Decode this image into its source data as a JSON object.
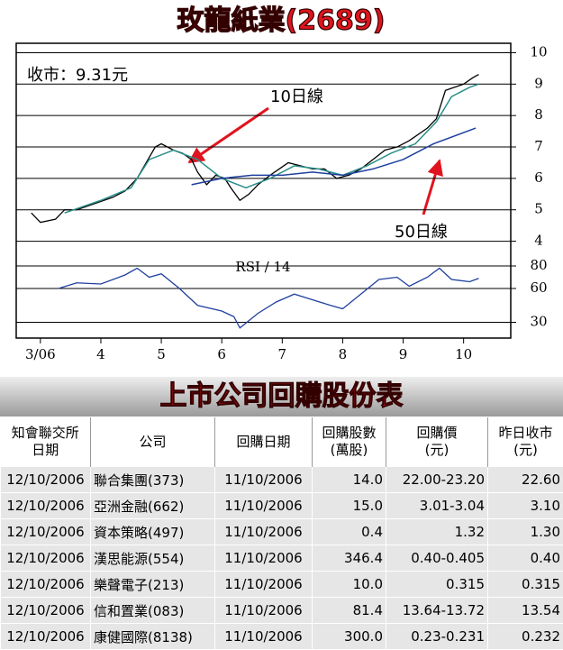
{
  "chart_data": [
    {
      "type": "line",
      "title": "玫龍紙業(2689)",
      "annotations": [
        "收市：9.31元",
        "10日線",
        "50日線"
      ],
      "xlim": [
        2.6,
        10.78
      ],
      "ylim": [
        3.5,
        10.3
      ],
      "yticks": [
        4,
        5,
        6,
        7,
        8,
        9,
        10
      ],
      "grid": true,
      "series": [
        {
          "name": "收市",
          "color": "#000000",
          "x": [
            2.85,
            3.0,
            3.25,
            3.4,
            3.6,
            3.9,
            4.2,
            4.4,
            4.6,
            4.75,
            4.9,
            5.0,
            5.2,
            5.35,
            5.5,
            5.6,
            5.75,
            5.9,
            6.05,
            6.15,
            6.3,
            6.45,
            6.6,
            6.8,
            6.95,
            7.1,
            7.3,
            7.5,
            7.7,
            7.9,
            8.1,
            8.3,
            8.5,
            8.7,
            8.9,
            9.1,
            9.4,
            9.55,
            9.7,
            9.85,
            10.0,
            10.15,
            10.25
          ],
          "values": [
            4.9,
            4.6,
            4.7,
            5.0,
            5.0,
            5.2,
            5.4,
            5.6,
            6.0,
            6.5,
            7.0,
            7.1,
            6.9,
            6.8,
            6.6,
            6.2,
            5.8,
            6.1,
            6.0,
            5.7,
            5.3,
            5.5,
            5.8,
            6.1,
            6.3,
            6.5,
            6.4,
            6.3,
            6.3,
            6.0,
            6.1,
            6.3,
            6.6,
            6.9,
            7.0,
            7.2,
            7.6,
            7.9,
            8.8,
            8.9,
            9.0,
            9.2,
            9.31
          ]
        },
        {
          "name": "10日線",
          "color": "#2a8f8a",
          "x": [
            3.4,
            4.0,
            4.5,
            4.8,
            5.2,
            5.6,
            6.0,
            6.4,
            6.8,
            7.2,
            7.6,
            8.0,
            8.4,
            8.8,
            9.2,
            9.55,
            9.8,
            10.1,
            10.25
          ],
          "values": [
            4.9,
            5.3,
            5.7,
            6.6,
            6.9,
            6.6,
            6.0,
            5.7,
            6.0,
            6.4,
            6.3,
            6.1,
            6.4,
            6.8,
            7.1,
            7.8,
            8.6,
            8.9,
            9.0
          ]
        },
        {
          "name": "50日線",
          "color": "#1f3f9f",
          "x": [
            5.5,
            6.0,
            6.5,
            7.0,
            7.5,
            8.0,
            8.5,
            9.0,
            9.5,
            10.2
          ],
          "values": [
            5.8,
            6.0,
            6.1,
            6.1,
            6.2,
            6.1,
            6.3,
            6.6,
            7.1,
            7.6
          ]
        }
      ]
    },
    {
      "type": "line",
      "title": "RSI / 14",
      "xlim": [
        2.6,
        10.78
      ],
      "ylim": [
        16,
        88
      ],
      "yticks": [
        30,
        60,
        80
      ],
      "grid": true,
      "xticks": [
        {
          "value": 3,
          "label": "3/06"
        },
        4,
        5,
        6,
        7,
        8,
        9,
        10
      ],
      "series": [
        {
          "name": "RSI",
          "color": "#1f3f9f",
          "x": [
            3.3,
            3.6,
            4.0,
            4.4,
            4.6,
            4.8,
            5.0,
            5.3,
            5.6,
            6.0,
            6.2,
            6.3,
            6.6,
            6.9,
            7.2,
            7.5,
            7.8,
            8.0,
            8.3,
            8.6,
            8.9,
            9.1,
            9.4,
            9.6,
            9.8,
            10.1,
            10.25
          ],
          "values": [
            60,
            65,
            64,
            72,
            78,
            70,
            73,
            60,
            45,
            40,
            35,
            25,
            38,
            48,
            55,
            50,
            45,
            42,
            55,
            68,
            70,
            62,
            70,
            78,
            68,
            66,
            69
          ]
        }
      ]
    }
  ],
  "table": {
    "title": "上市公司回購股份表",
    "columns": [
      "知會聯交所\n日期",
      "公司",
      "回購日期",
      "回購股數\n(萬股)",
      "回購價\n(元)",
      "昨日收市\n(元)"
    ],
    "rows": [
      [
        "12/10/2006",
        "聯合集團(373)",
        "11/10/2006",
        "14.0",
        "22.00-23.20",
        "22.60"
      ],
      [
        "12/10/2006",
        "亞洲金融(662)",
        "11/10/2006",
        "15.0",
        "3.01-3.04",
        "3.10"
      ],
      [
        "12/10/2006",
        "資本策略(497)",
        "11/10/2006",
        "0.4",
        "1.32",
        "1.30"
      ],
      [
        "12/10/2006",
        "漢思能源(554)",
        "11/10/2006",
        "346.4",
        "0.40-0.405",
        "0.40"
      ],
      [
        "12/10/2006",
        "樂聲電子(213)",
        "11/10/2006",
        "10.0",
        "0.315",
        "0.315"
      ],
      [
        "12/10/2006",
        "信和置業(083)",
        "11/10/2006",
        "81.4",
        "13.64-13.72",
        "13.54"
      ],
      [
        "12/10/2006",
        "康健國際(8138)",
        "11/10/2006",
        "300.0",
        "0.23-0.231",
        "0.232"
      ]
    ]
  }
}
